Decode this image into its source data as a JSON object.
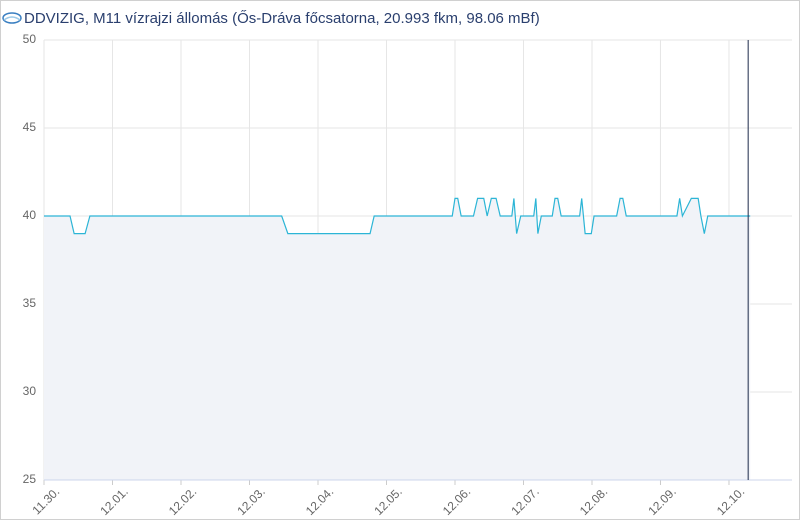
{
  "chart_data": {
    "type": "line",
    "title": "DDVIZIG, M11 vízrajzi állomás (Ős-Dráva főcsatorna, 20.993 fkm, 98.06 mBf)",
    "x": [
      0,
      0.38,
      0.44,
      0.6,
      0.67,
      3.47,
      3.56,
      4.76,
      4.82,
      5.96,
      6.0,
      6.04,
      6.09,
      6.27,
      6.33,
      6.42,
      6.47,
      6.53,
      6.6,
      6.66,
      6.83,
      6.86,
      6.9,
      6.96,
      7.15,
      7.18,
      7.21,
      7.26,
      7.42,
      7.46,
      7.5,
      7.55,
      7.82,
      7.85,
      7.9,
      7.99,
      8.03,
      8.36,
      8.41,
      8.45,
      8.5,
      9.24,
      9.28,
      9.32,
      9.45,
      9.55,
      9.59,
      9.64,
      9.69,
      10.31
    ],
    "values": [
      40,
      40,
      39,
      39,
      40,
      40,
      39,
      39,
      40,
      40,
      41,
      41,
      40,
      40,
      41,
      41,
      40,
      41,
      41,
      40,
      40,
      41,
      39,
      40,
      40,
      41,
      39,
      40,
      40,
      41,
      41,
      40,
      40,
      41,
      39,
      39,
      40,
      40,
      41,
      41,
      40,
      40,
      41,
      40,
      41,
      41,
      40,
      39,
      40,
      40
    ],
    "color": "#2cb5d6",
    "area_color": "#f1f3f8",
    "xlim": [
      0,
      10.92
    ],
    "xticks": [
      {
        "value": 0,
        "label": "11.30."
      },
      {
        "value": 1,
        "label": "12.01."
      },
      {
        "value": 2,
        "label": "12.02."
      },
      {
        "value": 3,
        "label": "12.03."
      },
      {
        "value": 4,
        "label": "12.04."
      },
      {
        "value": 5,
        "label": "12.05."
      },
      {
        "value": 6,
        "label": "12.06."
      },
      {
        "value": 7,
        "label": "12.07."
      },
      {
        "value": 8,
        "label": "12.08."
      },
      {
        "value": 9,
        "label": "12.09."
      },
      {
        "value": 10,
        "label": "12.10."
      }
    ],
    "ylim": [
      25,
      50
    ],
    "yticks": [
      25,
      30,
      35,
      40,
      45,
      50
    ],
    "marker_x": 10.28,
    "grid": true
  }
}
